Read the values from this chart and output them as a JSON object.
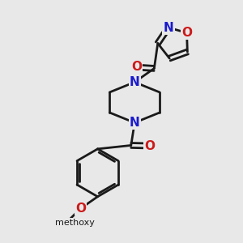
{
  "background_color": "#e8e8e8",
  "bond_color": "#1a1a1a",
  "nitrogen_color": "#1a1acc",
  "oxygen_color": "#cc1a1a",
  "carbon_color": "#1a1a1a",
  "bond_width": 2.0,
  "font_size_atoms": 11,
  "fig_size": [
    3.0,
    3.0
  ],
  "dpi": 100,
  "xlim": [
    0,
    10
  ],
  "ylim": [
    0,
    10
  ]
}
